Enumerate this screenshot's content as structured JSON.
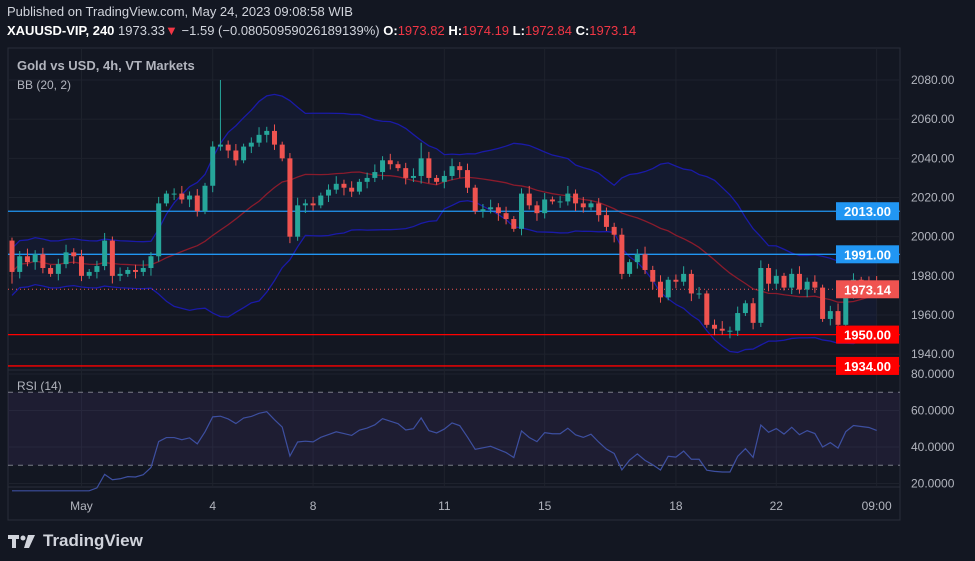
{
  "header": {
    "published": "Published on TradingView.com, May 24, 2023 09:08:58 WIB",
    "symbol": "XAUUSD-VIP, 240",
    "last": "1973.33",
    "change_icon": "triangle-down-icon",
    "change": "−1.59 (−0.08050959026189139%)",
    "o_label": "O:",
    "o": "1973.82",
    "h_label": "H:",
    "h": "1974.19",
    "l_label": "L:",
    "l": "1972.84",
    "c_label": "C:",
    "c": "1973.14"
  },
  "legend": {
    "title": "Gold vs USD, 4h, VT Markets",
    "indicator": "BB (20, 2)",
    "rsi": "RSI (14)"
  },
  "footer": {
    "brand": "TradingView"
  },
  "colors": {
    "background": "#131722",
    "up": "#26a69a",
    "down": "#ef5350",
    "support_resistance_blue": "#2196f3",
    "support_red": "#ff0000",
    "bb_band": "#1a1aa8",
    "bb_basis": "#8a1b2c",
    "rsi_line": "#3d4fa0"
  },
  "chart_data": {
    "type": "candlestick",
    "timeframe": "4h",
    "ylim": [
      1930,
      2088
    ],
    "price_ticks": [
      "2080.00",
      "2060.00",
      "2040.00",
      "2020.00",
      "2000.00",
      "1980.00",
      "1960.00",
      "1940.00"
    ],
    "time_ticks": [
      {
        "label": "May",
        "index": 9
      },
      {
        "label": "4",
        "index": 26
      },
      {
        "label": "8",
        "index": 39
      },
      {
        "label": "11",
        "index": 56
      },
      {
        "label": "15",
        "index": 69
      },
      {
        "label": "18",
        "index": 86
      },
      {
        "label": "22",
        "index": 99
      },
      {
        "label": "09:00",
        "index": 112
      }
    ],
    "first_open": 1998,
    "closes": [
      1982,
      1990,
      1987,
      1991,
      1984,
      1981,
      1986,
      1992,
      1990,
      1980,
      1982,
      1985,
      1998,
      1980,
      1981,
      1983,
      1982,
      1984,
      1990,
      2017,
      2022,
      2022,
      2019,
      2021,
      2013,
      2026,
      2046,
      2047,
      2044,
      2039,
      2046,
      2048,
      2052,
      2054,
      2047,
      2040,
      2000,
      2016,
      2017,
      2016,
      2021,
      2024,
      2027,
      2025,
      2023,
      2028,
      2030,
      2033,
      2039,
      2037,
      2035,
      2030,
      2031,
      2040,
      2030,
      2028,
      2031,
      2036,
      2034,
      2025,
      2013,
      2014,
      2015,
      2012,
      2009,
      2004,
      2022,
      2016,
      2012,
      2019,
      2018,
      2018,
      2022,
      2017,
      2015,
      2017,
      2011,
      2005,
      2001,
      1981,
      1987,
      1991,
      1983,
      1977,
      1969,
      1978,
      1977,
      1981,
      1971,
      1971,
      1955,
      1953,
      1952,
      1952,
      1961,
      1966,
      1956,
      1984,
      1976,
      1980,
      1974,
      1981,
      1973,
      1977,
      1974,
      1958,
      1962,
      1955,
      1971,
      1978,
      1977,
      1976,
      1973.14
    ],
    "notable_wicks": [
      {
        "index": 27,
        "high": 2080
      },
      {
        "index": 53,
        "high": 2048
      },
      {
        "index": 0,
        "low": 1976
      }
    ],
    "horizontal_lines": [
      {
        "price": 2013,
        "label": "2013.00",
        "color": "#2196f3"
      },
      {
        "price": 1991,
        "label": "1991.00",
        "color": "#2196f3"
      },
      {
        "price": 1950,
        "label": "1950.00",
        "color": "#ff0000"
      },
      {
        "price": 1934,
        "label": "1934.00",
        "color": "#ff0000"
      }
    ],
    "last_price": {
      "price": 1973.14,
      "label": "1973.14",
      "color": "#f05350"
    },
    "indicators": {
      "bollinger": {
        "length": 20,
        "mult": 2
      },
      "rsi": {
        "length": 14,
        "upper": 70,
        "lower": 30,
        "ylim": [
          15,
          85
        ],
        "ticks": [
          "80.0000",
          "60.0000",
          "40.0000",
          "20.0000"
        ]
      }
    }
  }
}
